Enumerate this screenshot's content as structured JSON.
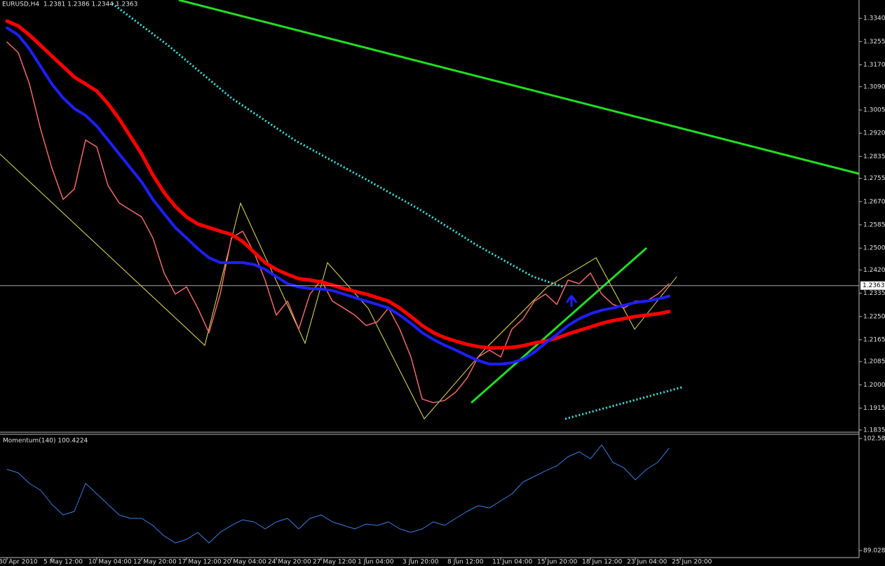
{
  "chart_data": [
    {
      "type": "line",
      "title": "EURUSD,H4  1.2381 1.2386 1.2344 1.2363",
      "categories": [
        "30 Apr 2010",
        null,
        null,
        null,
        "5 May 12:00",
        null,
        null,
        null,
        "10 May 04:00",
        null,
        null,
        null,
        "12 May 20:00",
        null,
        null,
        null,
        "17 May 12:00",
        null,
        null,
        null,
        "20 May 04:00",
        null,
        null,
        null,
        "24 May 20:00",
        null,
        null,
        null,
        "27 May 12:00",
        null,
        null,
        null,
        "1 Jun 04:00",
        null,
        null,
        null,
        "3 Jun 20:00",
        null,
        null,
        null,
        "8 Jun 12:00",
        null,
        null,
        null,
        "11 Jun 04:00",
        null,
        null,
        null,
        "15 Jun 20:00",
        null,
        null,
        null,
        "18 Jun 12:00",
        null,
        null,
        null,
        "23 Jun 04:00",
        null,
        null,
        null,
        "25 Jun 20:00"
      ],
      "series": [
        {
          "color": "#f06a6a",
          "values": [
            1.3253,
            1.3215,
            1.31,
            1.2934,
            1.2793,
            1.2678,
            1.2716,
            1.2895,
            1.287,
            1.2729,
            1.2665,
            1.2639,
            1.2614,
            1.2537,
            1.2409,
            1.2332,
            1.2358,
            1.2281,
            1.2191,
            1.2332,
            1.2537,
            1.2562,
            1.2486,
            1.2383,
            1.2255,
            1.2306,
            1.2204,
            1.2332,
            1.2383,
            1.2306,
            1.2281,
            1.2255,
            1.2217,
            1.223,
            1.2281,
            1.2204,
            1.2102,
            1.1948,
            1.1935,
            1.1943,
            1.1974,
            1.2025,
            1.2102,
            1.2127,
            1.2102,
            1.2204,
            1.2242,
            1.2306,
            1.2332,
            1.2294,
            1.2383,
            1.237,
            1.2409,
            1.2332,
            1.2294,
            1.2281,
            1.2306,
            1.2306,
            1.2332,
            1.237,
            null
          ]
        },
        {
          "color": "#ff0000",
          "values": [
            1.333,
            1.3312,
            1.3279,
            1.3241,
            1.3202,
            1.3164,
            1.3125,
            1.31,
            1.3074,
            1.3028,
            1.2972,
            1.2908,
            1.2844,
            1.2767,
            1.2703,
            1.2652,
            1.2614,
            1.2588,
            1.2575,
            1.2562,
            1.255,
            1.2524,
            1.2486,
            1.2447,
            1.2422,
            1.2404,
            1.2388,
            1.2383,
            1.2376,
            1.2365,
            1.2352,
            1.2342,
            1.2332,
            1.2319,
            1.2306,
            1.2281,
            1.225,
            1.2217,
            1.2191,
            1.2173,
            1.216,
            1.2148,
            1.214,
            1.2135,
            1.2135,
            1.2137,
            1.2143,
            1.2153,
            1.216,
            1.2171,
            1.2186,
            1.2199,
            1.2212,
            1.2225,
            1.2235,
            1.2242,
            1.225,
            1.2255,
            1.226,
            1.2268,
            null
          ]
        },
        {
          "color": "#1f1fff",
          "values": [
            1.3305,
            1.3279,
            1.3228,
            1.3164,
            1.31,
            1.3049,
            1.301,
            1.2985,
            1.2946,
            1.2895,
            1.2844,
            1.2793,
            1.2742,
            1.2678,
            1.2626,
            1.2575,
            1.2537,
            1.2498,
            1.2465,
            1.2447,
            1.2447,
            1.2447,
            1.244,
            1.2422,
            1.2396,
            1.237,
            1.2358,
            1.2352,
            1.235,
            1.2345,
            1.2332,
            1.2319,
            1.2306,
            1.2294,
            1.2281,
            1.2255,
            1.2225,
            1.2191,
            1.2166,
            1.2145,
            1.2127,
            1.2107,
            1.2089,
            1.2076,
            1.2076,
            1.2081,
            1.2094,
            1.212,
            1.2153,
            1.2184,
            1.2217,
            1.2242,
            1.226,
            1.2273,
            1.2281,
            1.2291,
            1.2301,
            1.2306,
            1.2314,
            1.2324,
            null
          ]
        }
      ],
      "ylim": [
        1.1827,
        1.3407
      ],
      "yticks": [
        {
          "value": 1.334,
          "label": "1.3340"
        },
        1.3255,
        {
          "value": 1.317,
          "label": "1.3170"
        },
        {
          "value": 1.309,
          "label": "1.3090"
        },
        {
          "value": 1.3005,
          "label": "1.3005"
        },
        {
          "value": 1.292,
          "label": "1.2920"
        },
        1.2835,
        1.2755,
        {
          "value": 1.267,
          "label": "1.2670"
        },
        1.2585,
        {
          "value": 1.25,
          "label": "1.2500"
        },
        {
          "value": 1.242,
          "label": "1.2420"
        },
        1.2335,
        {
          "value": 1.225,
          "label": "1.2250"
        },
        1.2165,
        1.2085,
        {
          "value": 1.2,
          "label": "1.2000"
        },
        1.1915,
        1.1835
      ],
      "current_price": 1.2363,
      "grid": false
    },
    {
      "type": "line",
      "title": "Momentum(140) 100.4224",
      "series": [
        {
          "color": "#3b7fe0",
          "values": [
            98.85,
            98.43,
            97.16,
            96.31,
            94.62,
            93.34,
            93.77,
            97.16,
            95.89,
            94.62,
            93.34,
            92.92,
            92.92,
            92.07,
            90.8,
            89.95,
            90.38,
            91.23,
            89.95,
            91.23,
            92.07,
            92.75,
            92.5,
            91.65,
            92.5,
            92.92,
            91.65,
            92.92,
            93.34,
            92.5,
            92.07,
            91.65,
            92.24,
            92.07,
            92.5,
            91.65,
            91.23,
            91.65,
            92.5,
            92.07,
            92.92,
            93.77,
            94.45,
            94.19,
            95.04,
            95.89,
            97.33,
            98.01,
            98.68,
            99.28,
            100.38,
            100.97,
            100.12,
            101.82,
            99.7,
            99.02,
            97.58,
            98.85,
            99.7,
            101.4,
            null
          ]
        }
      ],
      "ylim": [
        88.18,
        103.09
      ],
      "yticks": [
        {
          "value": 102.58,
          "label": "102.580"
        },
        89.0282
      ],
      "grid": false
    }
  ]
}
